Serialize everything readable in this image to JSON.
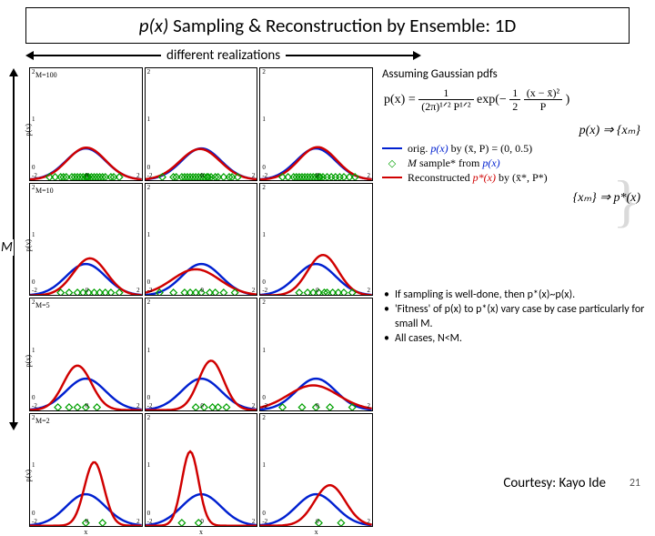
{
  "title_pre": "p(x)",
  "title_post": " Sampling & Reconstruction by Ensemble: 1D",
  "subtitle": "different realizations",
  "m_axis_label": "M",
  "assuming": "Assuming Gaussian pdfs",
  "formula_lhs": "p(x) = ",
  "formula_num1": "1",
  "formula_den1": "(2π)¹ᐟ² P¹ᐟ²",
  "formula_mid": " exp(−",
  "formula_num2": "1",
  "formula_den2": "2",
  "formula_num3": "(x − x̄)²",
  "formula_den3": "P",
  "formula_close": ")",
  "legend_top": "p(x) ⇒ {xₘ}",
  "legend1_pre": "orig. ",
  "legend1_px": "p(x)",
  "legend1_post": " by (x̄, P) = (0, 0.5)",
  "legend2_pre": "M",
  "legend2_mid": " sample* from ",
  "legend2_px": "p(x)",
  "legend3_pre": "Reconstructed ",
  "legend3_px": "p*(x)",
  "legend3_post": " by (x̄*, P*)",
  "legend_bot": "{xₘ} ⇒ p*(x)",
  "note1": "If sampling is well-done, then p*(x)~p(x).",
  "note2": "'Fitness' of p(x) to p*(x) vary case by case particularly for small M.",
  "note3": "All cases, N<M.",
  "credit": "Courtesy: Kayo Ide",
  "pagenum": "21",
  "plot": {
    "xlim": [
      -2,
      2
    ],
    "ylim": [
      0,
      2
    ],
    "xticks": [
      "-2",
      "0",
      "2"
    ],
    "yticks": [
      "2",
      "1",
      "0"
    ],
    "blue": "#0020d0",
    "red": "#d00000",
    "green": "#00a000",
    "rows": [
      {
        "M": 100,
        "ylab": "p(x)",
        "mtag": "M=100",
        "cols": [
          {
            "rmu": 0.02,
            "rsig": 0.69,
            "samples": [
              -1.3,
              -1.1,
              -0.9,
              -0.8,
              -0.7,
              -0.5,
              -0.4,
              -0.3,
              -0.2,
              -0.1,
              0.0,
              0.05,
              0.1,
              0.2,
              0.3,
              0.4,
              0.5,
              0.6,
              0.7,
              0.9,
              1.0,
              1.2
            ]
          },
          {
            "rmu": -0.05,
            "rsig": 0.72,
            "samples": [
              -1.4,
              -1.0,
              -0.9,
              -0.7,
              -0.6,
              -0.5,
              -0.4,
              -0.3,
              -0.2,
              -0.1,
              0.0,
              0.1,
              0.2,
              0.25,
              0.35,
              0.5,
              0.6,
              0.8,
              1.0,
              1.1,
              1.3
            ]
          },
          {
            "rmu": 0.06,
            "rsig": 0.68,
            "samples": [
              -1.2,
              -1.0,
              -0.8,
              -0.7,
              -0.6,
              -0.5,
              -0.4,
              -0.3,
              -0.2,
              -0.1,
              0.0,
              0.1,
              0.15,
              0.25,
              0.4,
              0.55,
              0.7,
              0.85,
              1.0,
              1.2,
              1.4
            ]
          }
        ]
      },
      {
        "M": 10,
        "ylab": "p(x)",
        "mtag": "M=10",
        "cols": [
          {
            "rmu": 0.15,
            "rsig": 0.6,
            "samples": [
              -0.9,
              -0.6,
              -0.3,
              -0.1,
              0.1,
              0.3,
              0.5,
              0.7,
              0.9,
              1.2
            ]
          },
          {
            "rmu": -0.2,
            "rsig": 0.85,
            "samples": [
              -1.5,
              -1.0,
              -0.6,
              -0.4,
              -0.2,
              0.0,
              0.3,
              0.5,
              0.8,
              1.2
            ]
          },
          {
            "rmu": 0.25,
            "rsig": 0.55,
            "samples": [
              -0.6,
              -0.3,
              -0.1,
              0.1,
              0.3,
              0.4,
              0.6,
              0.8,
              1.0,
              1.3
            ]
          }
        ]
      },
      {
        "M": 5,
        "ylab": "p(x)",
        "mtag": "M=5",
        "cols": [
          {
            "rmu": -0.3,
            "rsig": 0.5,
            "samples": [
              -1.0,
              -0.6,
              -0.3,
              0.0,
              0.4
            ]
          },
          {
            "rmu": 0.35,
            "rsig": 0.45,
            "samples": [
              -0.2,
              0.1,
              0.4,
              0.6,
              0.9
            ]
          },
          {
            "rmu": -0.1,
            "rsig": 0.9,
            "samples": [
              -1.2,
              -0.5,
              0.0,
              0.5,
              1.3
            ]
          }
        ]
      },
      {
        "M": 2,
        "ylab": "p(x)",
        "mtag": "M=2",
        "cols": [
          {
            "rmu": 0.3,
            "rsig": 0.35,
            "samples": [
              0.0,
              0.6
            ]
          },
          {
            "rmu": -0.4,
            "rsig": 0.3,
            "samples": [
              -0.7,
              -0.1
            ]
          },
          {
            "rmu": 0.5,
            "rsig": 0.55,
            "samples": [
              0.1,
              0.9
            ]
          }
        ]
      }
    ]
  }
}
